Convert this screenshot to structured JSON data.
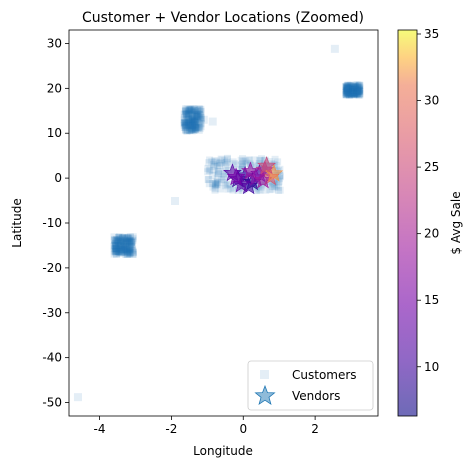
{
  "chart_data": {
    "type": "scatter",
    "title": "Customer + Vendor Locations (Zoomed)",
    "xlabel": "Longitude",
    "ylabel": "Latitude",
    "xlim": [
      -4.85,
      3.75
    ],
    "ylim": [
      -53,
      33
    ],
    "xticks": [
      -4,
      -2,
      0,
      2
    ],
    "yticks": [
      30,
      20,
      10,
      0,
      -10,
      -20,
      -30,
      -40,
      -50
    ],
    "grid": false,
    "legend": {
      "placement": "lower-right",
      "entries": [
        "Customers",
        "Vendors"
      ]
    },
    "colorbar": {
      "label": "$ Avg Sale",
      "range": [
        6.3,
        35.3
      ],
      "ticks": [
        10,
        15,
        20,
        25,
        30,
        35
      ],
      "colormap": "plasma"
    },
    "series": [
      {
        "name": "Customers",
        "marker": "square",
        "color": "#1f77b4",
        "clusters": [
          {
            "x": [
              -1.65,
              -1.15
            ],
            "y": [
              10.5,
              15.5
            ]
          },
          {
            "x": [
              -3.6,
              -3.05
            ],
            "y": [
              -17,
              -13
            ]
          },
          {
            "x": [
              -1.0,
              1.05
            ],
            "y": [
              -2.8,
              4.5
            ]
          },
          {
            "x": [
              2.85,
              3.25
            ],
            "y": [
              18.5,
              20.8
            ]
          }
        ],
        "points": [
          {
            "x": 2.55,
            "y": 28.8
          },
          {
            "x": -0.85,
            "y": 12.6
          },
          {
            "x": -0.75,
            "y": 3.5
          },
          {
            "x": -1.9,
            "y": -5.1
          },
          {
            "x": -4.6,
            "y": -48.8
          },
          {
            "x": -1.1,
            "y": 13.0
          }
        ]
      },
      {
        "name": "Vendors",
        "marker": "star",
        "points": [
          {
            "x": -0.15,
            "y": -0.3,
            "value": 9
          },
          {
            "x": 0.05,
            "y": 0.5,
            "value": 11
          },
          {
            "x": 0.25,
            "y": -0.9,
            "value": 8
          },
          {
            "x": 0.45,
            "y": 0.9,
            "value": 14
          },
          {
            "x": 0.6,
            "y": 1.8,
            "value": 22
          },
          {
            "x": 0.75,
            "y": 0.2,
            "value": 27
          },
          {
            "x": -0.3,
            "y": 1.1,
            "value": 12
          },
          {
            "x": 0.15,
            "y": -1.8,
            "value": 10
          },
          {
            "x": 0.35,
            "y": 0.1,
            "value": 16
          },
          {
            "x": 0.55,
            "y": -0.5,
            "value": 19
          },
          {
            "x": -0.05,
            "y": -1.4,
            "value": 13
          },
          {
            "x": 0.85,
            "y": 1.0,
            "value": 32
          },
          {
            "x": 0.65,
            "y": 2.7,
            "value": 25
          },
          {
            "x": 0.2,
            "y": 1.5,
            "value": 18
          },
          {
            "x": -0.2,
            "y": 0.2,
            "value": 15
          }
        ]
      }
    ]
  }
}
